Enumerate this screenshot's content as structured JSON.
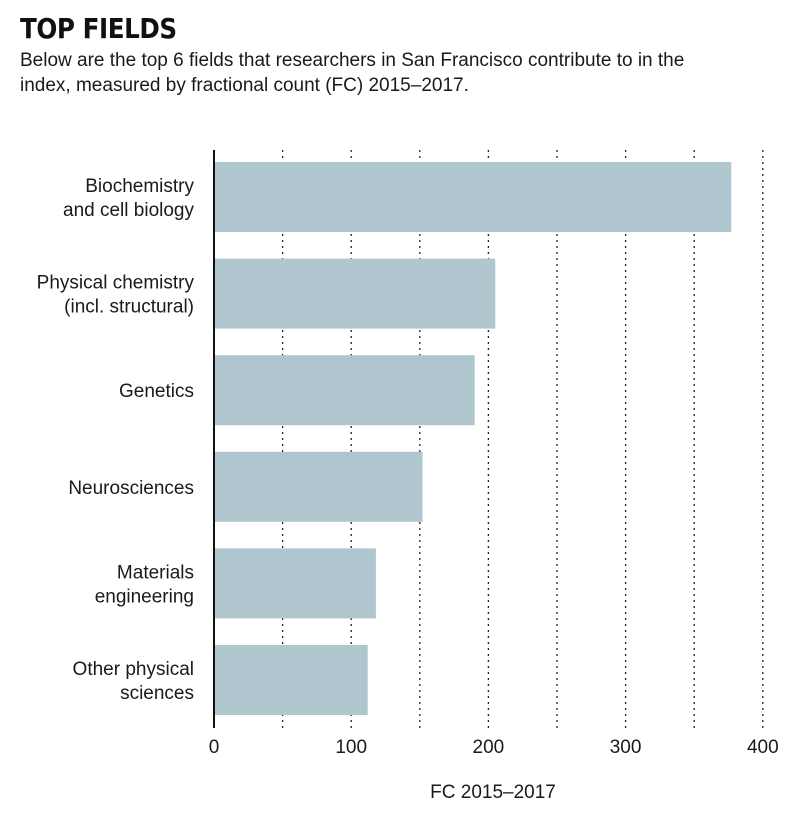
{
  "header": {
    "title": "TOP FIELDS",
    "subtitle": "Below are the top 6 fields that researchers in San Francisco contribute to in the index, measured by fractional count (FC) 2015–2017."
  },
  "chart_data": {
    "type": "bar",
    "orientation": "horizontal",
    "categories": [
      [
        "Biochemistry",
        "and cell biology"
      ],
      [
        "Physical chemistry",
        "(incl. structural)"
      ],
      [
        "Genetics"
      ],
      [
        "Neurosciences"
      ],
      [
        "Materials",
        "engineering"
      ],
      [
        "Other physical",
        "sciences"
      ]
    ],
    "values": [
      377,
      205,
      190,
      152,
      118,
      112
    ],
    "xlabel": "FC 2015–2017",
    "xlim": [
      0,
      400
    ],
    "xticks": [
      0,
      100,
      200,
      300,
      400
    ],
    "gridlines_at": [
      50,
      100,
      150,
      200,
      250,
      300,
      350,
      400
    ],
    "grid": "dotted vertical",
    "bar_color": "#b0c6cf"
  }
}
